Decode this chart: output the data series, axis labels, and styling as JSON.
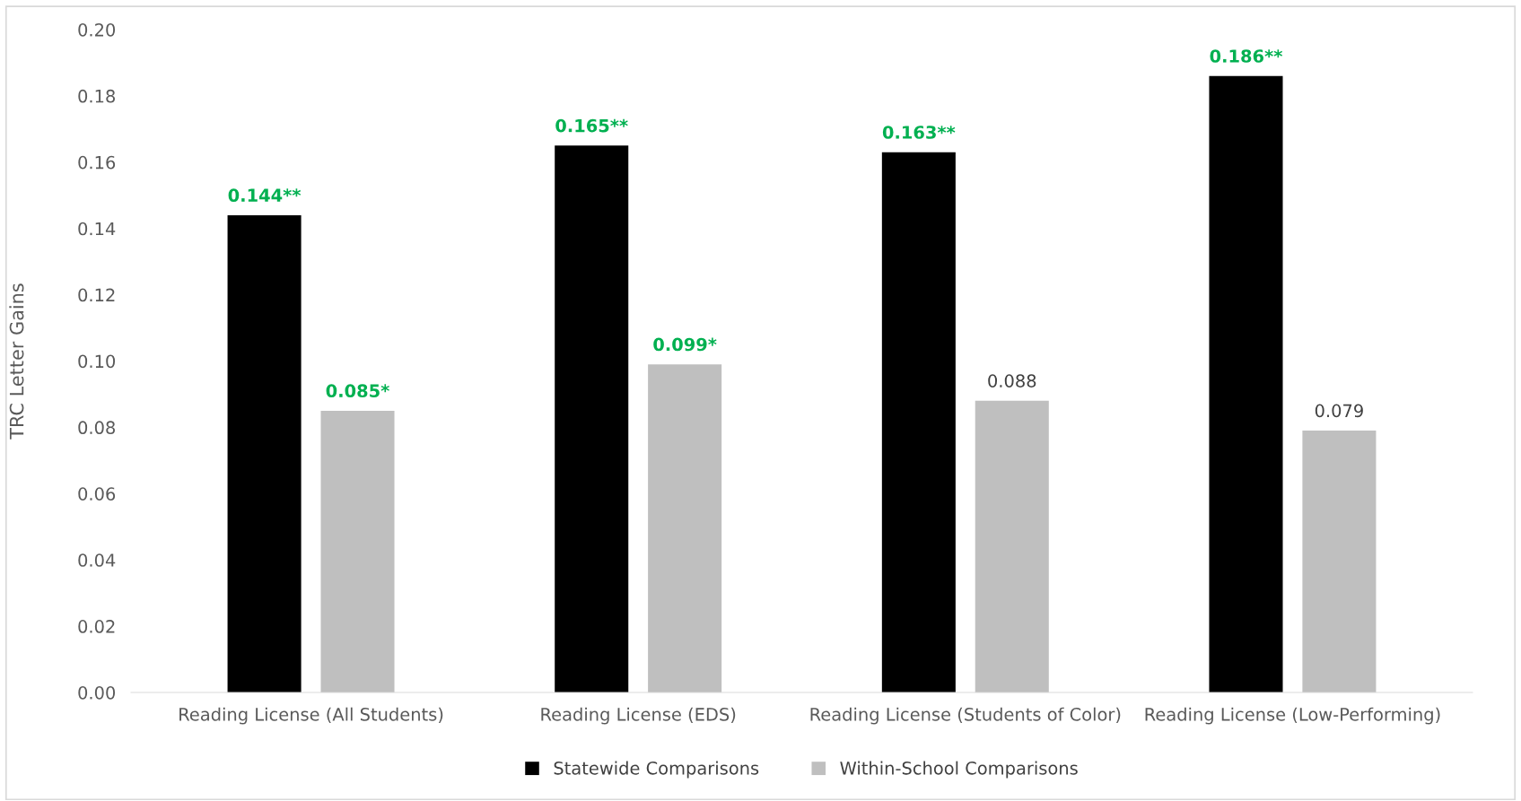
{
  "chart_data": {
    "type": "bar",
    "ylabel": "TRC Letter Gains",
    "categories": [
      "Reading License (All Students)",
      "Reading License (EDS)",
      "Reading License (Students of Color)",
      "Reading License (Low-Performing)"
    ],
    "series": [
      {
        "name": "Statewide Comparisons",
        "color": "#000000",
        "values": [
          0.144,
          0.165,
          0.163,
          0.186
        ],
        "value_labels": [
          "0.144**",
          "0.165**",
          "0.163**",
          "0.186**"
        ]
      },
      {
        "name": "Within-School Comparisons",
        "color": "#bfbfbf",
        "values": [
          0.085,
          0.099,
          0.088,
          0.079
        ],
        "value_labels": [
          "0.085*",
          "0.099*",
          "0.088",
          "0.079"
        ]
      }
    ],
    "ylim": [
      0,
      0.2
    ],
    "yticks": [
      {
        "value": 0,
        "label": "0.00"
      },
      {
        "value": 0.02,
        "label": "0.02"
      },
      {
        "value": 0.04,
        "label": "0.04"
      },
      {
        "value": 0.06,
        "label": "0.06"
      },
      {
        "value": 0.08,
        "label": "0.08"
      },
      {
        "value": 0.1,
        "label": "0.10"
      },
      {
        "value": 0.12,
        "label": "0.12"
      },
      {
        "value": 0.14,
        "label": "0.14"
      },
      {
        "value": 0.16,
        "label": "0.16"
      },
      {
        "value": 0.18,
        "label": "0.18"
      },
      {
        "value": 0.2,
        "label": "0.20"
      }
    ],
    "grid": false,
    "legend": "bottom"
  }
}
